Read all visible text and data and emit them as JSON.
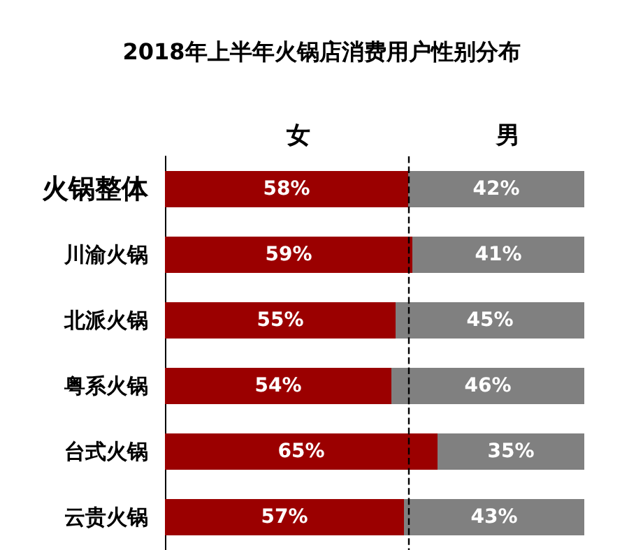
{
  "chart_data": {
    "type": "bar",
    "title": "2018年上半年火锅店消费用户性别分布",
    "orientation": "horizontal",
    "stacked": true,
    "categories": [
      "火锅整体",
      "川渝火锅",
      "北派火锅",
      "粤系火锅",
      "台式火锅",
      "云贵火锅"
    ],
    "series": [
      {
        "name": "女",
        "color": "#9b0000",
        "values": [
          58,
          59,
          55,
          54,
          65,
          57
        ],
        "value_labels": [
          "58%",
          "59%",
          "55%",
          "54%",
          "65%",
          "57%"
        ]
      },
      {
        "name": "男",
        "color": "#808080",
        "values": [
          42,
          41,
          45,
          46,
          35,
          43
        ],
        "value_labels": [
          "42%",
          "41%",
          "45%",
          "46%",
          "35%",
          "43%"
        ]
      }
    ],
    "tick_labels": "y",
    "legend": "top",
    "grid": false,
    "ref_lines": [
      {
        "axis": "x",
        "value": 58,
        "color": "#000000",
        "line_style": "dashed"
      }
    ]
  }
}
